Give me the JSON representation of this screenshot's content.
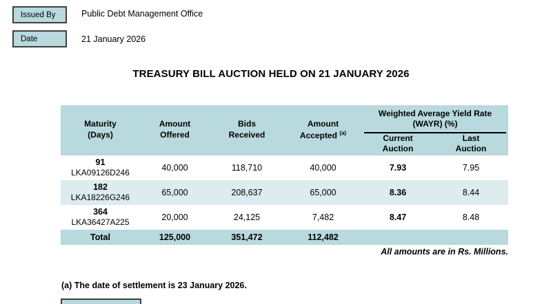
{
  "header": {
    "issued_by_label": "Issued By",
    "issued_by_value": "Public Debt Management Office",
    "date_label": "Date",
    "date_value": "21 January 2026"
  },
  "title": "TREASURY BILL AUCTION HELD ON 21 JANUARY 2026",
  "table": {
    "col_headers": {
      "maturity_l1": "Maturity",
      "maturity_l2": "(Days)",
      "offered_l1": "Amount",
      "offered_l2": "Offered",
      "bids_l1": "Bids",
      "bids_l2": "Received",
      "accepted_l1": "Amount",
      "accepted_l2": "Accepted",
      "accepted_sup": "(a)",
      "wayr_l1": "Weighted Average Yield Rate",
      "wayr_l2": "(WAYR) (%)",
      "current_l1": "Current",
      "current_l2": "Auction",
      "last_l1": "Last",
      "last_l2": "Auction"
    },
    "rows": [
      {
        "days": "91",
        "isin": "LKA09126D246",
        "offered": "40,000",
        "bids": "118,710",
        "accepted": "40,000",
        "wayr_current": "7.93",
        "wayr_last": "7.95"
      },
      {
        "days": "182",
        "isin": "LKA18226G246",
        "offered": "65,000",
        "bids": "208,637",
        "accepted": "65,000",
        "wayr_current": "8.36",
        "wayr_last": "8.44"
      },
      {
        "days": "364",
        "isin": "LKA36427A225",
        "offered": "20,000",
        "bids": "24,125",
        "accepted": "7,482",
        "wayr_current": "8.47",
        "wayr_last": "8.48"
      }
    ],
    "total": {
      "label": "Total",
      "offered": "125,000",
      "bids": "351,472",
      "accepted": "112,482"
    }
  },
  "notes": {
    "units": "All amounts are in Rs. Millions.",
    "settlement": "(a) The date of settlement is 23 January 2026."
  },
  "colors": {
    "teal": "#b8d9dd",
    "light_row": "#dcecef",
    "box_border": "#3f3f3f"
  }
}
